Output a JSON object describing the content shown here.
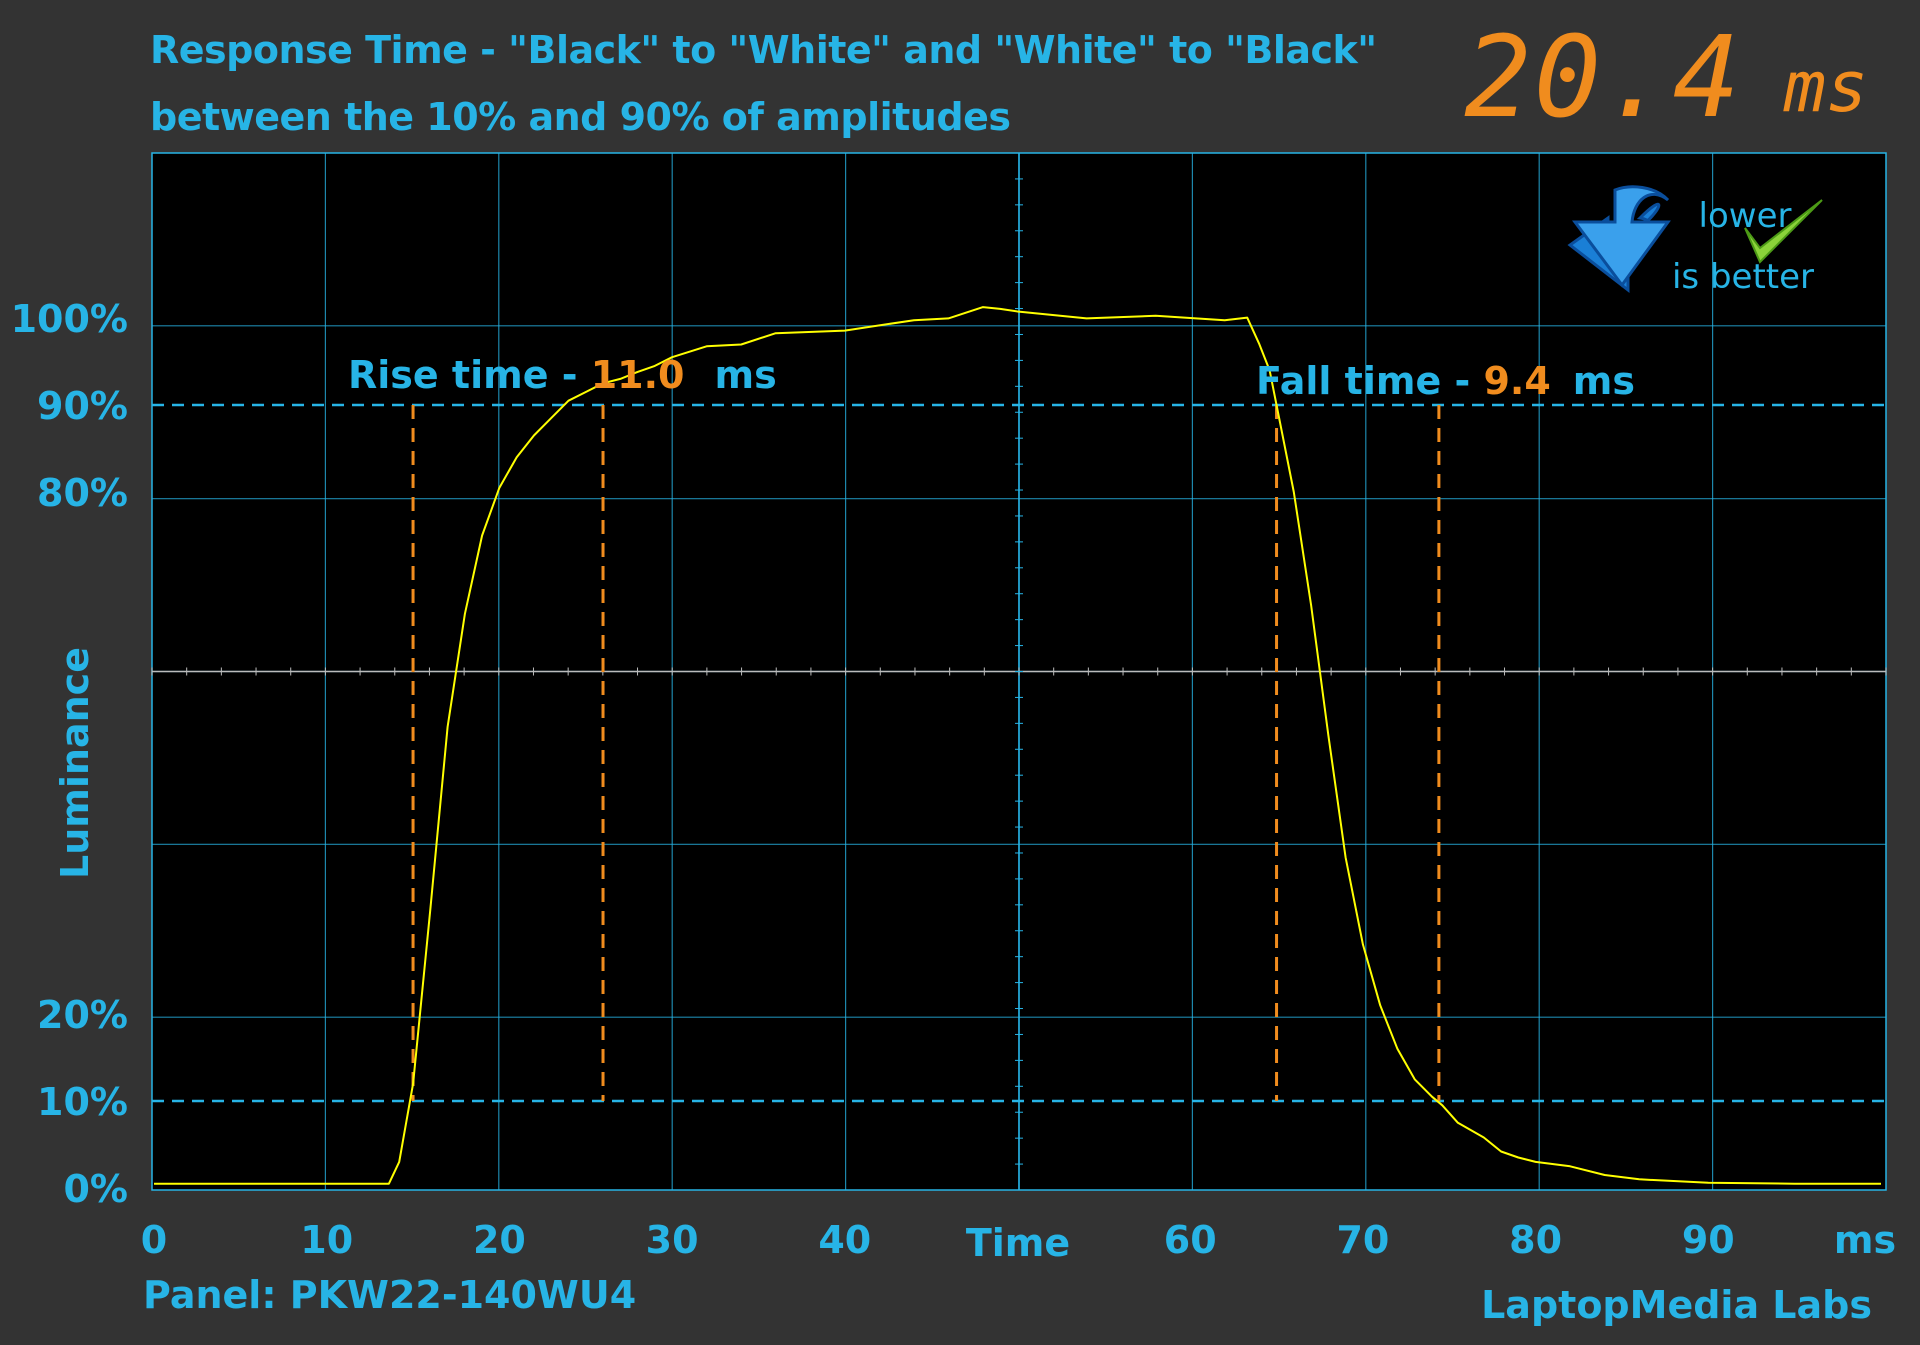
{
  "chart_data": {
    "type": "line",
    "title": "Response Time - \"Black\" to \"White\" and \"White\" to \"Black\"",
    "subtitle": "between the 10% and 90% of amplitudes",
    "xlabel": "Time",
    "x_unit": "ms",
    "ylabel": "Luminance",
    "xlim": [
      0,
      100
    ],
    "ylim": [
      0,
      100
    ],
    "x_ticks": [
      "0",
      "10",
      "20",
      "30",
      "40",
      "60",
      "70",
      "80",
      "90"
    ],
    "x_tick_values": [
      0,
      10,
      20,
      30,
      40,
      60,
      70,
      80,
      90
    ],
    "y_ticks": [
      "0%",
      "10%",
      "20%",
      "80%",
      "90%",
      "100%"
    ],
    "y_tick_values": [
      0,
      10,
      20,
      80,
      90,
      100
    ],
    "grid": true,
    "threshold_lines": [
      10,
      90
    ],
    "series": [
      {
        "color": "#ffff00",
        "x": [
          0,
          13.6,
          14.2,
          15,
          16,
          17,
          18,
          19,
          20,
          21,
          22,
          23,
          24,
          25,
          26,
          27,
          28,
          29,
          30,
          32,
          34,
          36,
          40,
          44,
          46,
          48,
          49,
          50,
          54,
          58,
          62,
          63.3,
          64,
          64.6,
          65.2,
          66,
          67,
          68,
          69,
          70,
          71,
          72,
          73,
          74,
          74.6,
          75.5,
          77,
          78,
          79,
          80,
          82,
          84,
          86,
          90,
          95,
          100
        ],
        "y": [
          0.5,
          0.5,
          3,
          12,
          32,
          53,
          66,
          75,
          80.5,
          84,
          86.5,
          88.5,
          90.5,
          91.5,
          92.5,
          93,
          93.8,
          94.5,
          95.5,
          96.5,
          97.2,
          98,
          98.8,
          99.5,
          100.2,
          101,
          101.3,
          100.5,
          100.2,
          100,
          100,
          99.8,
          97,
          94,
          88,
          80,
          67,
          52,
          38,
          28,
          21,
          16,
          12.5,
          10.5,
          9.5,
          7.5,
          5.8,
          4.2,
          3.5,
          3,
          2.5,
          1.5,
          1,
          0.6,
          0.5,
          0.5
        ]
      }
    ],
    "rise_time": {
      "label": "Rise time - ",
      "value": "11.0",
      "unit": "ms",
      "x_start": 15.0,
      "x_end": 26.0
    },
    "fall_time": {
      "label": "Fall time - ",
      "value": "9.4",
      "unit": "ms",
      "x_start": 65.0,
      "x_end": 74.4
    },
    "total_response": {
      "value": "20.4",
      "unit": "ms"
    },
    "badge": {
      "line1": "lower",
      "line2": "is better",
      "icon": "down-arrow-icon",
      "check_icon": "checkmark-icon"
    },
    "colors": {
      "accent": "#27b4e6",
      "highlight": "#f08c1e",
      "trace": "#ffff00",
      "plot_bg": "#000000",
      "page_bg": "#333333"
    }
  },
  "footer": {
    "panel": "Panel: PKW22-140WU4",
    "credit": "LaptopMedia Labs"
  }
}
